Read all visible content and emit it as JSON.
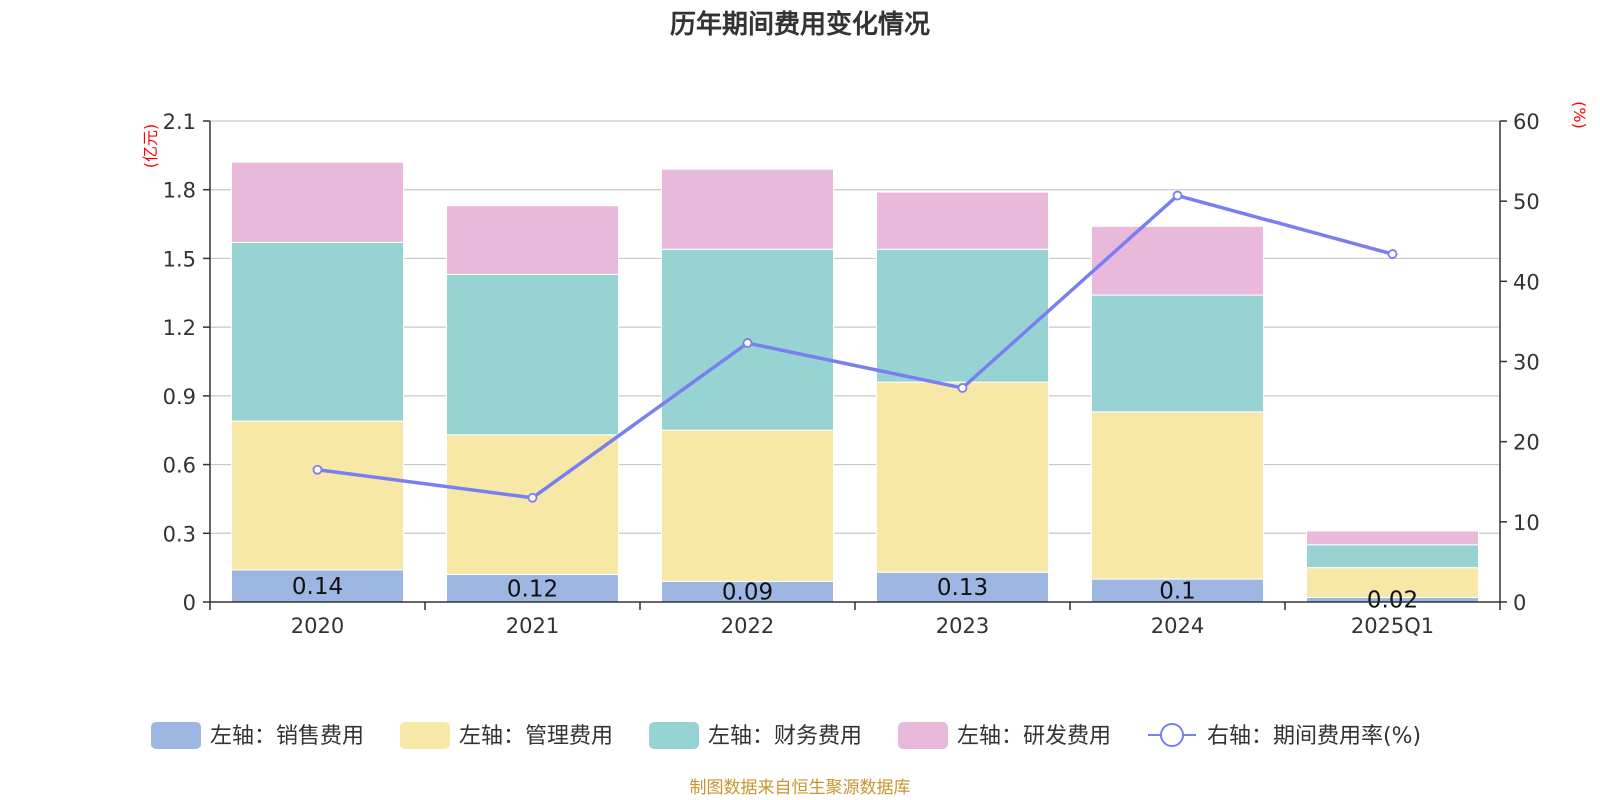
{
  "chart_data": {
    "type": "bar",
    "title": "历年期间费用变化情况",
    "categories": [
      "2020",
      "2021",
      "2022",
      "2023",
      "2024",
      "2025Q1"
    ],
    "left_axis": {
      "unit": "(亿元)",
      "ylim": [
        0,
        2.1
      ],
      "ticks": [
        "0",
        "0.3",
        "0.6",
        "0.9",
        "1.2",
        "1.5",
        "1.8",
        "2.1"
      ]
    },
    "right_axis": {
      "unit": "(%)",
      "ylim": [
        0,
        60
      ],
      "ticks": [
        "0",
        "10",
        "20",
        "30",
        "40",
        "50",
        "60"
      ]
    },
    "series": [
      {
        "name": "左轴：销售费用",
        "color": "#9db6e2",
        "values": [
          0.14,
          0.12,
          0.09,
          0.13,
          0.1,
          0.02
        ],
        "labels": [
          "0.14",
          "0.12",
          "0.09",
          "0.13",
          "0.1",
          "0.02"
        ]
      },
      {
        "name": "左轴：管理费用",
        "color": "#f8e8a8",
        "values": [
          0.65,
          0.61,
          0.66,
          0.83,
          0.73,
          0.13
        ]
      },
      {
        "name": "左轴：财务费用",
        "color": "#98d3d4",
        "values": [
          0.78,
          0.7,
          0.79,
          0.58,
          0.51,
          0.1
        ]
      },
      {
        "name": "左轴：研发费用",
        "color": "#e8b9da",
        "values": [
          0.35,
          0.3,
          0.35,
          0.25,
          0.3,
          0.06
        ]
      }
    ],
    "line_series": {
      "name": "右轴：期间费用率(%)",
      "color": "#7a7ff0",
      "values": [
        16.5,
        13.0,
        32.3,
        26.7,
        50.7,
        43.4
      ]
    },
    "legend_position": "bottom-center",
    "grid": true
  },
  "source_note": "制图数据来自恒生聚源数据库"
}
